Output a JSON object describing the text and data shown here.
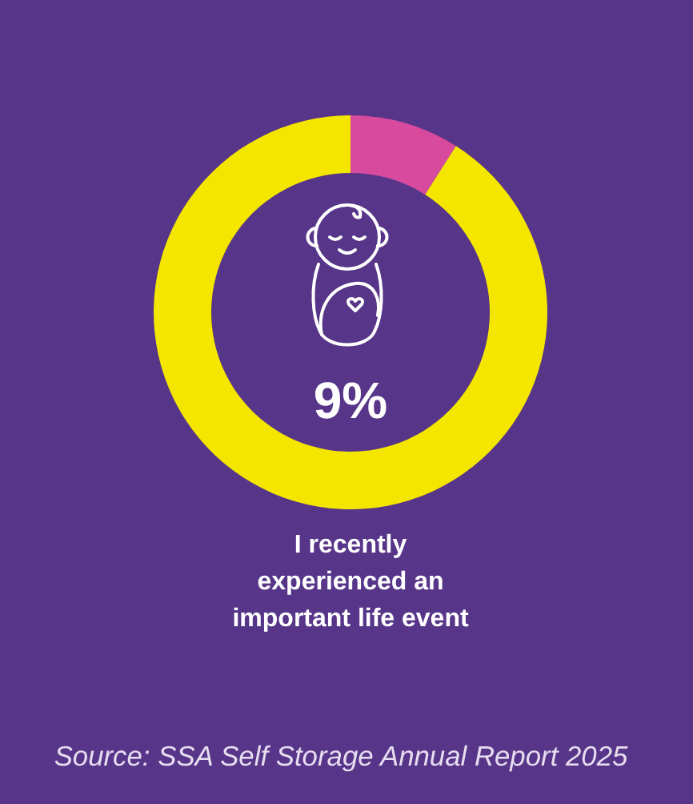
{
  "chart_data": {
    "type": "donut",
    "title": "I recently experienced an important life event",
    "categories": [
      null,
      null
    ],
    "values": [
      9,
      91
    ],
    "colors": [
      "#d84a9e",
      "#f5e600"
    ],
    "annotations": [
      "9%",
      "Source: SSA Self Storage Annual Report 2025"
    ]
  }
}
